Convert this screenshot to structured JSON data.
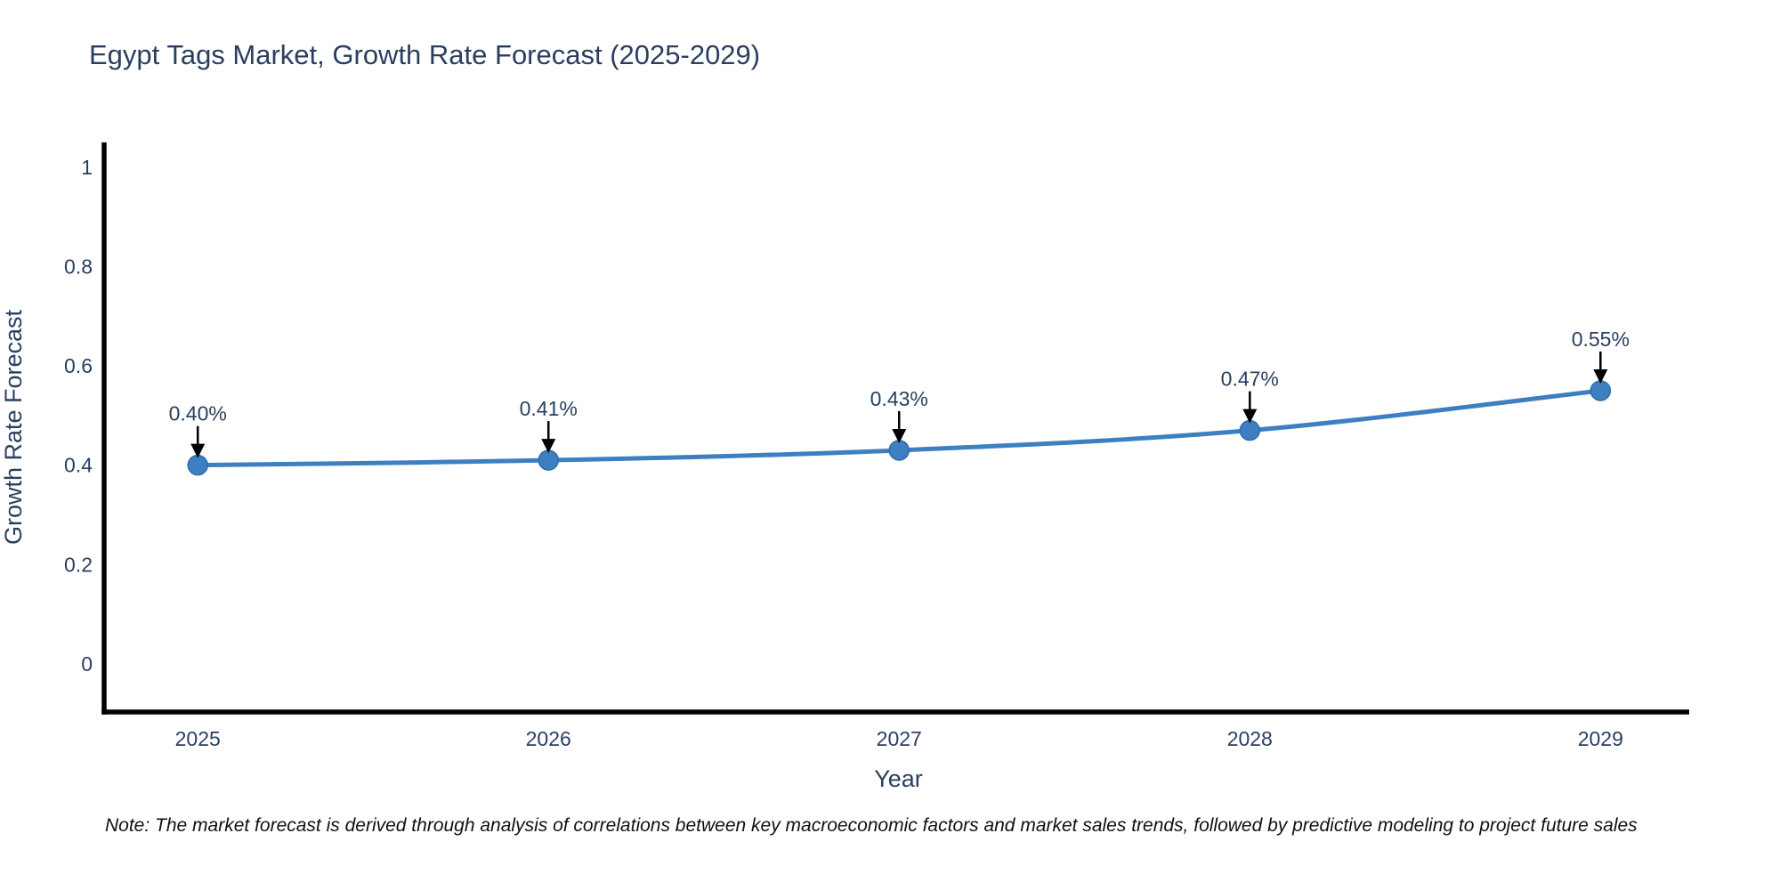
{
  "chart_data": {
    "type": "line",
    "title": "Egypt Tags Market, Growth Rate Forecast (2025-2029)",
    "xlabel": "Year",
    "ylabel": "Growth Rate Forecast",
    "x": [
      2025,
      2026,
      2027,
      2028,
      2029
    ],
    "xtick_labels": [
      "2025",
      "2026",
      "2027",
      "2028",
      "2029"
    ],
    "series": [
      {
        "name": "Growth Rate Forecast",
        "values": [
          0.4,
          0.41,
          0.43,
          0.47,
          0.55
        ]
      }
    ],
    "point_labels": [
      "0.40%",
      "0.41%",
      "0.43%",
      "0.47%",
      "0.55%"
    ],
    "yticks": [
      0,
      0.2,
      0.4,
      0.6,
      0.8,
      1
    ],
    "ytick_labels": [
      "0",
      "0.2",
      "0.4",
      "0.6",
      "0.8",
      "1"
    ],
    "xlim": [
      2024.733,
      2029.253
    ],
    "ylim": [
      -0.097,
      1.05
    ],
    "grid": false,
    "legend": "none",
    "line_shape": "spline",
    "colors": {
      "line": "#3d7fc1",
      "marker": "#3d7fc1",
      "marker_edge": "#2f6da8",
      "arrow": "#000000",
      "axis": "#000000",
      "text": "#2a3f5f"
    }
  },
  "note": {
    "text": "Note: The market forecast is derived through analysis of correlations between key macroeconomic factors and market sales trends, followed by predictive modeling to project future sales"
  }
}
